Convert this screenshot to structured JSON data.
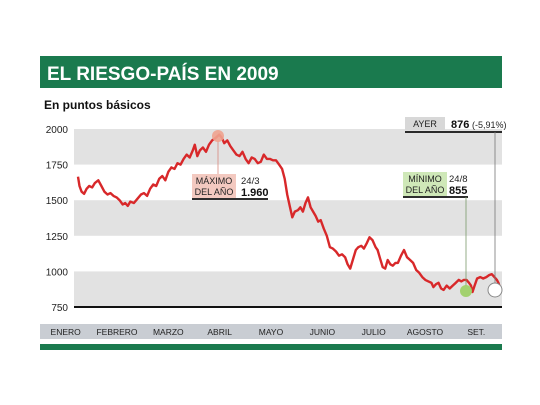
{
  "header": {
    "title": "EL RIESGO-PAÍS EN 2009",
    "subtitle": "En puntos básicos"
  },
  "colors": {
    "header_bg": "#1a7a4e",
    "band_gray": "#e2e2e2",
    "line": "#d8282a",
    "month_bar": "#c9cdd3",
    "max_label_bg": "#f3c9c0",
    "min_label_bg": "#cfe8b8",
    "ayer_bg": "#d8d8d8"
  },
  "annotations": {
    "max": {
      "label_line1": "MÁXIMO",
      "label_line2": "DEL AÑO",
      "date": "24/3",
      "value": "1.960"
    },
    "min": {
      "label_line1": "MÍNIMO",
      "label_line2": "DEL AÑO",
      "date": "24/8",
      "value": "855"
    },
    "ayer": {
      "label": "AYER",
      "value": "876",
      "change": "(-5,91%)"
    }
  },
  "chart_data": {
    "type": "line",
    "title": "EL RIESGO-PAÍS EN 2009",
    "subtitle": "En puntos básicos",
    "ylim": [
      750,
      2000
    ],
    "yticks": [
      2000,
      1750,
      1500,
      1250,
      1000,
      750
    ],
    "ytick_labels": [
      "2000",
      "1750",
      "1500",
      "1250",
      "1000",
      "750"
    ],
    "xlim": [
      0,
      8.35
    ],
    "months": [
      "ENERO",
      "FEBRERO",
      "MARZO",
      "ABRIL",
      "MAYO",
      "JUNIO",
      "JULIO",
      "AGOSTO",
      "SET."
    ],
    "grid": "alternating horizontal bands",
    "series": [
      {
        "values": [
          [
            0.0,
            1665
          ],
          [
            0.03,
            1600
          ],
          [
            0.07,
            1560
          ],
          [
            0.12,
            1545
          ],
          [
            0.17,
            1580
          ],
          [
            0.22,
            1600
          ],
          [
            0.28,
            1590
          ],
          [
            0.33,
            1620
          ],
          [
            0.4,
            1640
          ],
          [
            0.46,
            1600
          ],
          [
            0.52,
            1560
          ],
          [
            0.58,
            1540
          ],
          [
            0.64,
            1550
          ],
          [
            0.7,
            1530
          ],
          [
            0.76,
            1520
          ],
          [
            0.82,
            1500
          ],
          [
            0.88,
            1470
          ],
          [
            0.93,
            1480
          ],
          [
            0.98,
            1460
          ],
          [
            1.03,
            1490
          ],
          [
            1.1,
            1480
          ],
          [
            1.17,
            1510
          ],
          [
            1.24,
            1540
          ],
          [
            1.3,
            1550
          ],
          [
            1.36,
            1530
          ],
          [
            1.42,
            1580
          ],
          [
            1.48,
            1610
          ],
          [
            1.54,
            1600
          ],
          [
            1.6,
            1650
          ],
          [
            1.66,
            1670
          ],
          [
            1.72,
            1640
          ],
          [
            1.78,
            1700
          ],
          [
            1.84,
            1730
          ],
          [
            1.9,
            1720
          ],
          [
            1.96,
            1760
          ],
          [
            2.02,
            1750
          ],
          [
            2.08,
            1790
          ],
          [
            2.14,
            1820
          ],
          [
            2.2,
            1800
          ],
          [
            2.26,
            1850
          ],
          [
            2.3,
            1890
          ],
          [
            2.35,
            1810
          ],
          [
            2.4,
            1850
          ],
          [
            2.46,
            1870
          ],
          [
            2.52,
            1840
          ],
          [
            2.58,
            1890
          ],
          [
            2.64,
            1920
          ],
          [
            2.7,
            1935
          ],
          [
            2.75,
            1950
          ],
          [
            2.78,
            1960
          ],
          [
            2.83,
            1940
          ],
          [
            2.88,
            1900
          ],
          [
            2.94,
            1920
          ],
          [
            3.0,
            1880
          ],
          [
            3.06,
            1850
          ],
          [
            3.12,
            1820
          ],
          [
            3.18,
            1810
          ],
          [
            3.24,
            1840
          ],
          [
            3.3,
            1790
          ],
          [
            3.36,
            1760
          ],
          [
            3.42,
            1800
          ],
          [
            3.48,
            1790
          ],
          [
            3.54,
            1760
          ],
          [
            3.6,
            1770
          ],
          [
            3.66,
            1820
          ],
          [
            3.72,
            1790
          ],
          [
            3.78,
            1790
          ],
          [
            3.84,
            1780
          ],
          [
            3.9,
            1780
          ],
          [
            3.96,
            1750
          ],
          [
            4.02,
            1720
          ],
          [
            4.07,
            1650
          ],
          [
            4.12,
            1540
          ],
          [
            4.17,
            1460
          ],
          [
            4.22,
            1380
          ],
          [
            4.27,
            1420
          ],
          [
            4.33,
            1430
          ],
          [
            4.38,
            1450
          ],
          [
            4.43,
            1420
          ],
          [
            4.48,
            1480
          ],
          [
            4.53,
            1520
          ],
          [
            4.58,
            1450
          ],
          [
            4.63,
            1420
          ],
          [
            4.68,
            1390
          ],
          [
            4.73,
            1350
          ],
          [
            4.78,
            1360
          ],
          [
            4.84,
            1300
          ],
          [
            4.9,
            1250
          ],
          [
            4.96,
            1170
          ],
          [
            5.02,
            1160
          ],
          [
            5.08,
            1140
          ],
          [
            5.14,
            1110
          ],
          [
            5.2,
            1120
          ],
          [
            5.26,
            1100
          ],
          [
            5.31,
            1050
          ],
          [
            5.36,
            1020
          ],
          [
            5.42,
            1090
          ],
          [
            5.47,
            1150
          ],
          [
            5.52,
            1170
          ],
          [
            5.58,
            1180
          ],
          [
            5.63,
            1160
          ],
          [
            5.69,
            1200
          ],
          [
            5.74,
            1240
          ],
          [
            5.8,
            1220
          ],
          [
            5.86,
            1170
          ],
          [
            5.9,
            1150
          ],
          [
            5.95,
            1090
          ],
          [
            6.0,
            1030
          ],
          [
            6.05,
            1020
          ],
          [
            6.1,
            1080
          ],
          [
            6.15,
            1050
          ],
          [
            6.2,
            1040
          ],
          [
            6.25,
            1060
          ],
          [
            6.3,
            1060
          ],
          [
            6.36,
            1110
          ],
          [
            6.42,
            1150
          ],
          [
            6.48,
            1100
          ],
          [
            6.54,
            1080
          ],
          [
            6.6,
            1060
          ],
          [
            6.66,
            1010
          ],
          [
            6.72,
            990
          ],
          [
            6.78,
            960
          ],
          [
            6.84,
            940
          ],
          [
            6.9,
            930
          ],
          [
            6.96,
            920
          ],
          [
            7.0,
            890
          ],
          [
            7.05,
            910
          ],
          [
            7.1,
            920
          ],
          [
            7.15,
            880
          ],
          [
            7.2,
            870
          ],
          [
            7.26,
            900
          ],
          [
            7.32,
            880
          ],
          [
            7.38,
            900
          ],
          [
            7.44,
            920
          ],
          [
            7.5,
            940
          ],
          [
            7.55,
            930
          ],
          [
            7.6,
            940
          ],
          [
            7.65,
            940
          ],
          [
            7.7,
            920
          ],
          [
            7.74,
            900
          ],
          [
            7.77,
            855
          ],
          [
            7.81,
            900
          ],
          [
            7.86,
            950
          ],
          [
            7.92,
            960
          ],
          [
            7.98,
            950
          ],
          [
            8.04,
            960
          ],
          [
            8.1,
            975
          ],
          [
            8.15,
            980
          ],
          [
            8.2,
            960
          ],
          [
            8.25,
            940
          ],
          [
            8.28,
            920
          ],
          [
            8.32,
            876
          ]
        ]
      }
    ]
  }
}
